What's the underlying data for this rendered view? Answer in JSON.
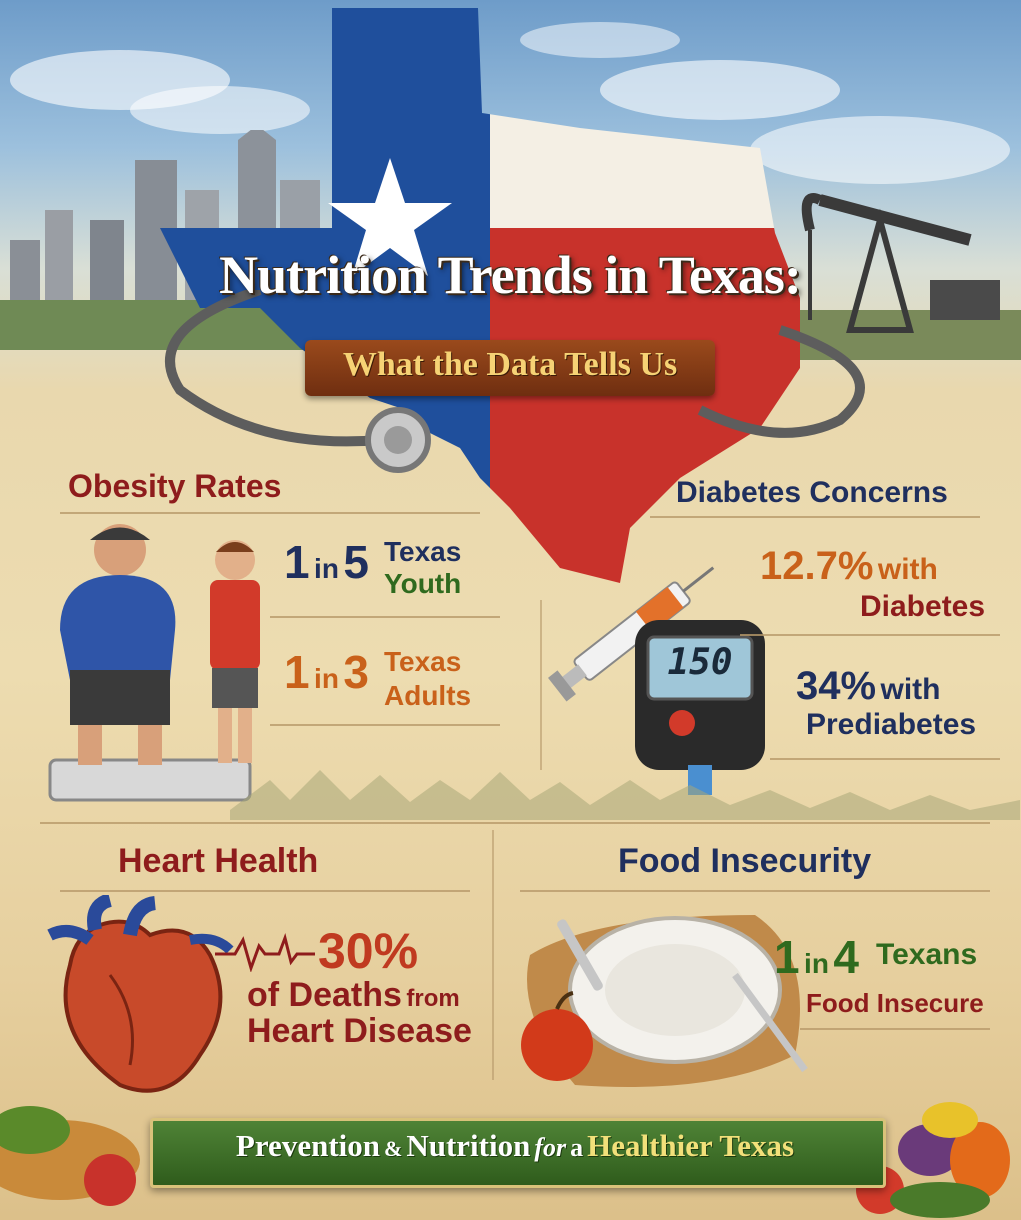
{
  "title": "Nutrition Trends in Texas:",
  "subtitle": "What the Data Tells Us",
  "sections": {
    "obesity": {
      "heading": "Obesity Rates",
      "stat1": {
        "num_a": "1",
        "word": "in",
        "num_b": "5",
        "line1": "Texas",
        "line2": "Youth"
      },
      "stat2": {
        "num_a": "1",
        "word": "in",
        "num_b": "3",
        "line1": "Texas",
        "line2": "Adults"
      }
    },
    "diabetes": {
      "heading": "Diabetes Concerns",
      "stat1": {
        "value": "12.7%",
        "with": "with",
        "label": "Diabetes"
      },
      "stat2": {
        "value": "34%",
        "with": "with",
        "label": "Prediabetes"
      },
      "meter_reading": "150"
    },
    "heart": {
      "heading": "Heart Health",
      "value": "30%",
      "line1_big": "of Deaths",
      "line1_small": "from",
      "line2": "Heart Disease"
    },
    "food": {
      "heading": "Food Insecurity",
      "num_a": "1",
      "word": "in",
      "num_b": "4",
      "line1": "Texans",
      "line2": "Food Insecure"
    }
  },
  "banner": {
    "part1": "Prevention",
    "amp": "&",
    "part2": "Nutrition",
    "for": "for",
    "a": "a",
    "part3": "Healthier Texas"
  },
  "colors": {
    "texas_blue": "#1f4f9c",
    "texas_red": "#c8322b",
    "heading_red": "#8e1c1c",
    "heading_navy": "#1f2f5e",
    "stat_orange": "#c9611a",
    "stat_green": "#2f6a1e",
    "banner_green": "#3f6f2a"
  },
  "icons": [
    "texas-flag-map-icon",
    "stethoscope-icon",
    "city-skyline-icon",
    "oil-pumpjack-icon",
    "parent-child-scale-icon",
    "syringe-icon",
    "glucose-meter-icon",
    "heart-anatomy-icon",
    "heartbeat-line-icon",
    "plate-and-apple-icon",
    "vegetables-icon"
  ]
}
